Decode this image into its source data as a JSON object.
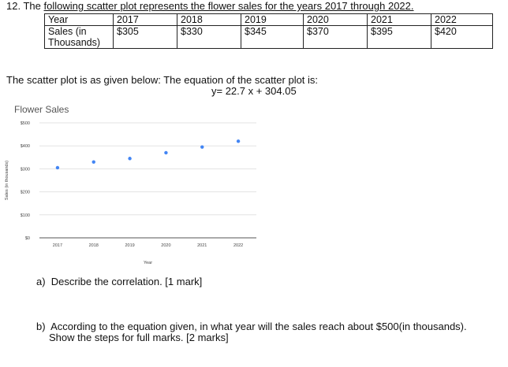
{
  "question": {
    "number": "12.",
    "prefix": "The",
    "text": "following scatter plot represents the flower sales for the years 2017 through 2022."
  },
  "table": {
    "row_headers": [
      "Year",
      "Sales (in Thousands)"
    ],
    "years": [
      "2017",
      "2018",
      "2019",
      "2020",
      "2021",
      "2022"
    ],
    "sales": [
      "$305",
      "$330",
      "$345",
      "$370",
      "$395",
      "$420"
    ]
  },
  "intro_text": "The scatter plot is as given below: The equation of the scatter plot is:",
  "equation": "y= 22.7 x + 304.05",
  "chart_data": {
    "type": "scatter",
    "title": "Flower Sales",
    "xlabel": "Year",
    "ylabel": "Sales (in thousands)",
    "x": [
      2017,
      2018,
      2019,
      2020,
      2021,
      2022
    ],
    "y": [
      305,
      330,
      345,
      370,
      395,
      420
    ],
    "x_tick_labels": [
      "2017",
      "2018",
      "2019",
      "2020",
      "2021",
      "2022"
    ],
    "y_ticks": [
      0,
      100,
      200,
      300,
      400,
      500
    ],
    "y_tick_labels": [
      "$0",
      "$100",
      "$200",
      "$300",
      "$400",
      "$500"
    ],
    "ylim": [
      0,
      500
    ],
    "grid": true,
    "point_color": "#4285f4"
  },
  "part_a": {
    "label": "a)",
    "text": "Describe the correlation. [1 mark]"
  },
  "part_b": {
    "label": "b)",
    "line1": "According to the equation given, in what year will the sales reach about $500(in thousands).",
    "line2": "Show the steps for full marks. [2 marks]"
  }
}
